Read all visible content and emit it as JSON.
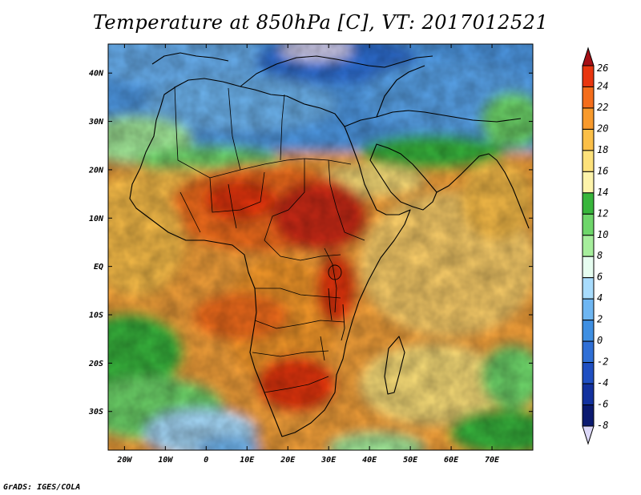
{
  "title": "Temperature at 850hPa [C], VT: 2017012521",
  "credit": "GrADS: IGES/COLA",
  "map": {
    "lon_range": [
      -24,
      80
    ],
    "lat_range": [
      -38,
      46
    ],
    "lon_ticks": [
      {
        "value": -20,
        "label": "20W"
      },
      {
        "value": -10,
        "label": "10W"
      },
      {
        "value": 0,
        "label": "0"
      },
      {
        "value": 10,
        "label": "10E"
      },
      {
        "value": 20,
        "label": "20E"
      },
      {
        "value": 30,
        "label": "30E"
      },
      {
        "value": 40,
        "label": "40E"
      },
      {
        "value": 50,
        "label": "50E"
      },
      {
        "value": 60,
        "label": "60E"
      },
      {
        "value": 70,
        "label": "70E"
      }
    ],
    "lat_ticks": [
      {
        "value": 40,
        "label": "40N"
      },
      {
        "value": 30,
        "label": "30N"
      },
      {
        "value": 20,
        "label": "20N"
      },
      {
        "value": 10,
        "label": "10N"
      },
      {
        "value": 0,
        "label": "EQ"
      },
      {
        "value": -10,
        "label": "10S"
      },
      {
        "value": -20,
        "label": "20S"
      },
      {
        "value": -30,
        "label": "30S"
      }
    ]
  },
  "colorbar": {
    "levels": [
      "26",
      "24",
      "22",
      "20",
      "18",
      "16",
      "14",
      "12",
      "10",
      "8",
      "6",
      "4",
      "2",
      "0",
      "-2",
      "-4",
      "-6",
      "-8"
    ],
    "colors": [
      "#a50f15",
      "#e8360f",
      "#f46d1b",
      "#f89a2c",
      "#fbbf48",
      "#fde17a",
      "#fdf3aa",
      "#38b63c",
      "#6ed66a",
      "#a6ee9c",
      "#e6fdf0",
      "#a8dcfd",
      "#6eb6f2",
      "#3f8fe2",
      "#2f6fd6",
      "#1f4fc2",
      "#12319e",
      "#0b1a70",
      "#dcd8f8"
    ]
  }
}
